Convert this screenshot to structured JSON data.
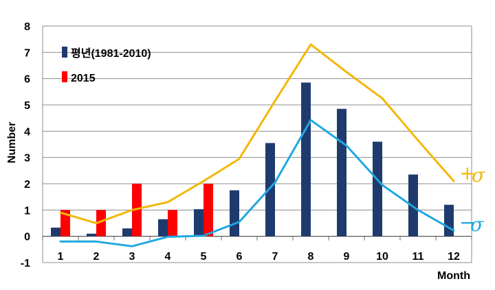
{
  "chart_data": {
    "type": "bar",
    "title": "",
    "xlabel": "Month",
    "ylabel": "Number",
    "ylim": [
      -1,
      8
    ],
    "yticks": [
      "-1",
      "0",
      "1",
      "2",
      "3",
      "4",
      "5",
      "6",
      "7",
      "8"
    ],
    "categories": [
      "1",
      "2",
      "3",
      "4",
      "5",
      "6",
      "7",
      "8",
      "9",
      "10",
      "11",
      "12"
    ],
    "grid": "horizontal",
    "legend_position": "top-left",
    "series": [
      {
        "name": "평년(1981-2010)",
        "kind": "bar",
        "color": "#1f3b6e",
        "values": [
          0.33,
          0.1,
          0.3,
          0.65,
          1.03,
          1.75,
          3.55,
          5.85,
          4.85,
          3.6,
          2.35,
          1.2
        ]
      },
      {
        "name": "2015",
        "kind": "bar",
        "color": "#ff0000",
        "values": [
          1,
          1,
          2,
          1,
          2,
          null,
          null,
          null,
          null,
          null,
          null,
          null
        ]
      },
      {
        "name": "+σ",
        "kind": "line",
        "color": "#f2b705",
        "values": [
          0.9,
          0.5,
          1.0,
          1.3,
          2.1,
          2.95,
          5.15,
          7.3,
          6.25,
          5.25,
          3.65,
          2.1
        ]
      },
      {
        "name": "−σ",
        "kind": "line",
        "color": "#1ea7e1",
        "values": [
          -0.2,
          -0.2,
          -0.38,
          -0.02,
          0.02,
          0.55,
          2.05,
          4.42,
          3.45,
          1.95,
          1.0,
          0.22
        ]
      }
    ],
    "annotations": {
      "plus_sigma": {
        "sign": "+",
        "symbol": "σ"
      },
      "minus_sigma": {
        "sign": "−",
        "symbol": "σ"
      }
    }
  }
}
